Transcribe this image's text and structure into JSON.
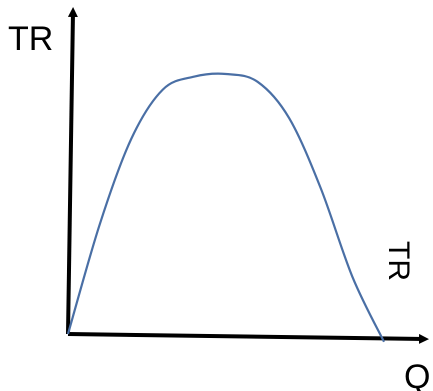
{
  "chart_data": {
    "type": "line",
    "title": "",
    "xlabel": "Q",
    "ylabel": "TR",
    "grid": false,
    "axis_color": "#000000",
    "series": [
      {
        "name": "TR",
        "color": "#4a6fa5",
        "x": [
          0,
          0.1,
          0.2,
          0.3,
          0.4,
          0.5,
          0.6,
          0.7,
          0.8,
          0.9,
          1.0
        ],
        "y": [
          0,
          0.42,
          0.75,
          0.94,
          0.99,
          1.0,
          0.97,
          0.83,
          0.56,
          0.22,
          -0.03
        ]
      }
    ],
    "xlim": [
      0,
      1.1
    ],
    "ylim": [
      0,
      1.3
    ]
  }
}
